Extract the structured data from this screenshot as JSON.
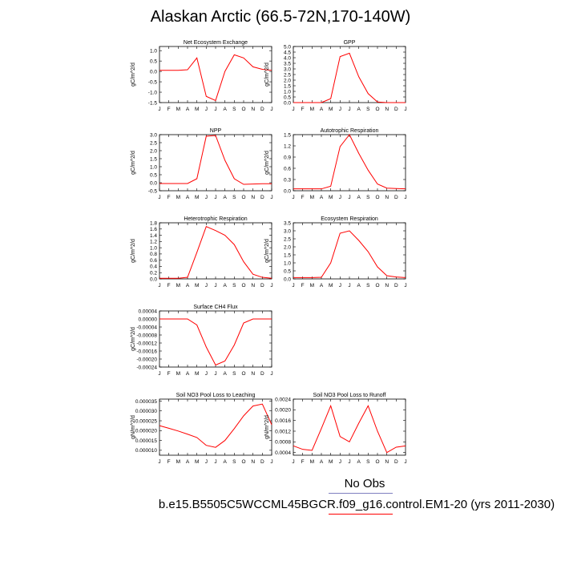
{
  "figure": {
    "title": "Alaskan Arctic (66.5-72N,170-140W)",
    "legend": {
      "obs_label": "No Obs",
      "run_label": "b.e15.B5505C5WCCML45BGCR.f09_g16.control.EM1-20 (yrs 2011-2030)",
      "obs_color": "#8080c0",
      "run_color": "#ff0000"
    }
  },
  "chart_data": [
    {
      "type": "line",
      "title": "Net Ecosystem Exchange",
      "ylabel": "gC/m^2/d",
      "x": [
        "J",
        "F",
        "M",
        "A",
        "M",
        "J",
        "J",
        "A",
        "S",
        "O",
        "N",
        "D",
        "J"
      ],
      "ylim": [
        -1.5,
        1.2
      ],
      "yticks": [
        -1.5,
        -1.0,
        -0.5,
        0.0,
        0.5,
        1.0
      ],
      "ytick_labels": [
        "-1.5",
        "-1.0",
        "-0.5",
        "0.0",
        "0.5",
        "1.0"
      ],
      "series": [
        {
          "color": "#ff0000",
          "values": [
            0.05,
            0.05,
            0.05,
            0.08,
            0.65,
            -1.2,
            -1.4,
            0.0,
            0.8,
            0.65,
            0.22,
            0.1,
            0.05
          ]
        }
      ]
    },
    {
      "type": "line",
      "title": "GPP",
      "ylabel": "gC/m^2/d",
      "x": [
        "J",
        "F",
        "M",
        "A",
        "M",
        "J",
        "J",
        "A",
        "S",
        "O",
        "N",
        "D",
        "J"
      ],
      "ylim": [
        0,
        5.0
      ],
      "yticks": [
        0,
        0.5,
        1.0,
        1.5,
        2.0,
        2.5,
        3.0,
        3.5,
        4.0,
        4.5,
        5.0
      ],
      "ytick_labels": [
        "0.0",
        "0.5",
        "1.0",
        "1.5",
        "2.0",
        "2.5",
        "3.0",
        "3.5",
        "4.0",
        "4.5",
        "5.0"
      ],
      "series": [
        {
          "color": "#ff0000",
          "values": [
            0.0,
            0.0,
            0.0,
            0.0,
            0.35,
            4.1,
            4.4,
            2.3,
            0.8,
            0.05,
            0.0,
            0.0,
            0.0
          ]
        }
      ]
    },
    {
      "type": "line",
      "title": "NPP",
      "ylabel": "gC/m^2/d",
      "x": [
        "J",
        "F",
        "M",
        "A",
        "M",
        "J",
        "J",
        "A",
        "S",
        "O",
        "N",
        "D",
        "J"
      ],
      "ylim": [
        -0.5,
        3.0
      ],
      "yticks": [
        -0.5,
        0.0,
        0.5,
        1.0,
        1.5,
        2.0,
        2.5,
        3.0
      ],
      "ytick_labels": [
        "-0.5",
        "0.0",
        "0.5",
        "1.0",
        "1.5",
        "2.0",
        "2.5",
        "3.0"
      ],
      "series": [
        {
          "color": "#ff0000",
          "values": [
            -0.05,
            -0.05,
            -0.05,
            -0.05,
            0.25,
            2.9,
            2.95,
            1.4,
            0.25,
            -0.1,
            -0.08,
            -0.06,
            -0.06
          ]
        }
      ]
    },
    {
      "type": "line",
      "title": "Autotrophic Respiration",
      "ylabel": "gC/m^2/d",
      "x": [
        "J",
        "F",
        "M",
        "A",
        "M",
        "J",
        "J",
        "A",
        "S",
        "O",
        "N",
        "D",
        "J"
      ],
      "ylim": [
        0,
        1.5
      ],
      "yticks": [
        0,
        0.3,
        0.6,
        0.9,
        1.2,
        1.5
      ],
      "ytick_labels": [
        "0.0",
        "0.3",
        "0.6",
        "0.9",
        "1.2",
        "1.5"
      ],
      "series": [
        {
          "color": "#ff0000",
          "values": [
            0.05,
            0.05,
            0.05,
            0.05,
            0.12,
            1.18,
            1.5,
            1.0,
            0.55,
            0.18,
            0.07,
            0.06,
            0.05
          ]
        }
      ]
    },
    {
      "type": "line",
      "title": "Heterotrophic Respiration",
      "ylabel": "gC/m^2/d",
      "x": [
        "J",
        "F",
        "M",
        "A",
        "M",
        "J",
        "J",
        "A",
        "S",
        "O",
        "N",
        "D",
        "J"
      ],
      "ylim": [
        0,
        1.8
      ],
      "yticks": [
        0,
        0.2,
        0.4,
        0.6,
        0.8,
        1.0,
        1.2,
        1.4,
        1.6,
        1.8
      ],
      "ytick_labels": [
        "0.0",
        "0.2",
        "0.4",
        "0.6",
        "0.8",
        "1.0",
        "1.2",
        "1.4",
        "1.6",
        "1.8"
      ],
      "series": [
        {
          "color": "#ff0000",
          "values": [
            0.02,
            0.02,
            0.02,
            0.05,
            0.85,
            1.68,
            1.55,
            1.4,
            1.1,
            0.55,
            0.15,
            0.05,
            0.02
          ]
        }
      ]
    },
    {
      "type": "line",
      "title": "Ecosystem Respiration",
      "ylabel": "gC/m^2/d",
      "x": [
        "J",
        "F",
        "M",
        "A",
        "M",
        "J",
        "J",
        "A",
        "S",
        "O",
        "N",
        "D",
        "J"
      ],
      "ylim": [
        0,
        3.5
      ],
      "yticks": [
        0,
        0.5,
        1.0,
        1.5,
        2.0,
        2.5,
        3.0,
        3.5
      ],
      "ytick_labels": [
        "0.0",
        "0.5",
        "1.0",
        "1.5",
        "2.0",
        "2.5",
        "3.0",
        "3.5"
      ],
      "series": [
        {
          "color": "#ff0000",
          "values": [
            0.08,
            0.08,
            0.08,
            0.1,
            1.0,
            2.85,
            3.0,
            2.4,
            1.7,
            0.75,
            0.2,
            0.12,
            0.08
          ]
        }
      ]
    },
    {
      "type": "line",
      "title": "Surface CH4 Flux",
      "ylabel": "gC/m^2/d",
      "x": [
        "J",
        "F",
        "M",
        "A",
        "M",
        "J",
        "J",
        "A",
        "S",
        "O",
        "N",
        "D",
        "J"
      ],
      "ylim": [
        -0.00024,
        4e-05
      ],
      "yticks": [
        -0.00024,
        -0.0002,
        -0.00016,
        -0.00012,
        -8e-05,
        -4e-05,
        0.0,
        4e-05
      ],
      "ytick_labels": [
        "-0.00024",
        "-0.00020",
        "-0.00016",
        "-0.00012",
        "-0.00008",
        "-0.00004",
        "0.00000",
        "0.00004"
      ],
      "series": [
        {
          "color": "#ff0000",
          "values": [
            0.0,
            0.0,
            0.0,
            0.0,
            -3e-05,
            -0.00014,
            -0.00023,
            -0.00021,
            -0.00013,
            -2e-05,
            0.0,
            0.0,
            0.0
          ]
        }
      ]
    },
    {
      "type": "line",
      "title": "Soil NO3 Pool Loss to Leaching",
      "ylabel": "gN/m^2/d",
      "x": [
        "J",
        "F",
        "M",
        "A",
        "M",
        "J",
        "J",
        "A",
        "S",
        "O",
        "N",
        "D",
        "J"
      ],
      "ylim": [
        7.5e-06,
        3.6e-05
      ],
      "yticks": [
        1e-05,
        1.5e-05,
        2e-05,
        2.5e-05,
        3e-05,
        3.5e-05
      ],
      "ytick_labels": [
        "0.000010",
        "0.000015",
        "0.000020",
        "0.000025",
        "0.000030",
        "0.000035"
      ],
      "series": [
        {
          "color": "#ff0000",
          "values": [
            2.25e-05,
            2.12e-05,
            1.98e-05,
            1.82e-05,
            1.65e-05,
            1.25e-05,
            1.15e-05,
            1.5e-05,
            2.1e-05,
            2.75e-05,
            3.25e-05,
            3.35e-05,
            2.3e-05
          ]
        }
      ]
    },
    {
      "type": "line",
      "title": "Soil NO3 Pool Loss to Runoff",
      "ylabel": "gN/m^2/d",
      "x": [
        "J",
        "F",
        "M",
        "A",
        "M",
        "J",
        "J",
        "A",
        "S",
        "O",
        "N",
        "D",
        "J"
      ],
      "ylim": [
        0.0003,
        0.0024
      ],
      "yticks": [
        0.0004,
        0.0008,
        0.0012,
        0.0016,
        0.002,
        0.0024
      ],
      "ytick_labels": [
        "0.0004",
        "0.0008",
        "0.0012",
        "0.0016",
        "0.0020",
        "0.0024"
      ],
      "series": [
        {
          "color": "#ff0000",
          "values": [
            0.00065,
            0.00052,
            0.00048,
            0.0013,
            0.00215,
            0.001,
            0.0008,
            0.0015,
            0.00215,
            0.0012,
            0.0004,
            0.0006,
            0.00065
          ]
        }
      ]
    }
  ]
}
